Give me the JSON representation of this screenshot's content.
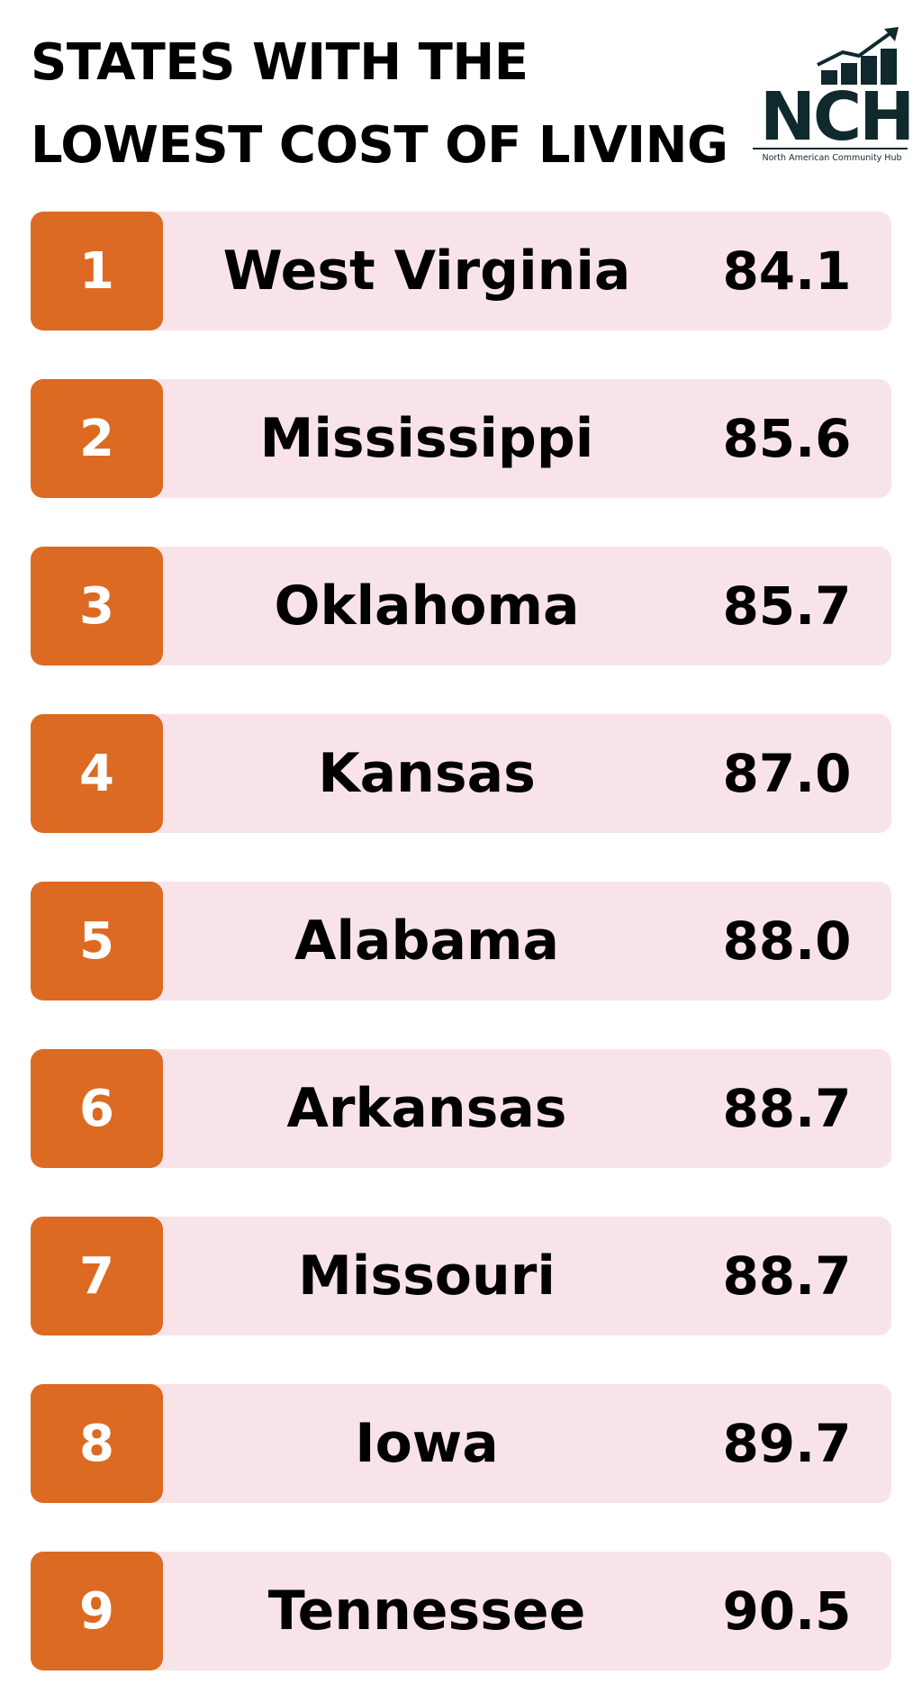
{
  "header": {
    "title": "STATES WITH THE LOWEST COST OF LIVING",
    "logo": {
      "mark": "NCH",
      "caption": "North American Community Hub"
    }
  },
  "list": {
    "rows": [
      {
        "rank": 1,
        "state": "West Virginia",
        "value": "84.1"
      },
      {
        "rank": 2,
        "state": "Mississippi",
        "value": "85.6"
      },
      {
        "rank": 3,
        "state": "Oklahoma",
        "value": "85.7"
      },
      {
        "rank": 4,
        "state": "Kansas",
        "value": "87.0"
      },
      {
        "rank": 5,
        "state": "Alabama",
        "value": "88.0"
      },
      {
        "rank": 6,
        "state": "Arkansas",
        "value": "88.7"
      },
      {
        "rank": 7,
        "state": "Missouri",
        "value": "88.7"
      },
      {
        "rank": 8,
        "state": "Iowa",
        "value": "89.7"
      },
      {
        "rank": 9,
        "state": "Tennessee",
        "value": "90.5"
      }
    ]
  }
}
